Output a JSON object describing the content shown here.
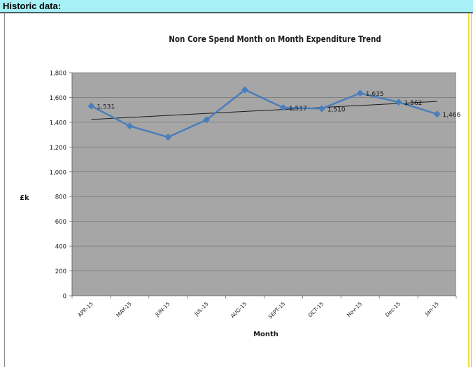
{
  "header": {
    "title": "Historic data:"
  },
  "chart_data": {
    "type": "line",
    "title": "Non Core Spend Month on Month Expenditure Trend",
    "xlabel": "Month",
    "ylabel": "£k",
    "ylim": [
      0,
      1800
    ],
    "yticks": [
      "0",
      "200",
      "400",
      "600",
      "800",
      "1,000",
      "1,200",
      "1,400",
      "1,600",
      "1,800"
    ],
    "grid": true,
    "legend": "none",
    "trendline": "linear",
    "categories": [
      "APR-15",
      "MAY-15",
      "JUN-15",
      "JUL-15",
      "AUG-15",
      "SEPT-15",
      "OCT-15",
      "Nov-15",
      "Dec-15",
      "Jan-15"
    ],
    "series": [
      {
        "values": [
          1531,
          1370,
          1280,
          1420,
          1662,
          1517,
          1510,
          1635,
          1562,
          1466
        ],
        "data_labels": [
          "1,531",
          "",
          "",
          "",
          "",
          "1,517",
          "1,510",
          "1,635",
          "1,562",
          "1,466"
        ],
        "color": "#4a7ebb"
      }
    ],
    "plot_background": "#a6a6a6",
    "trend_color": "#1a1a1a"
  }
}
